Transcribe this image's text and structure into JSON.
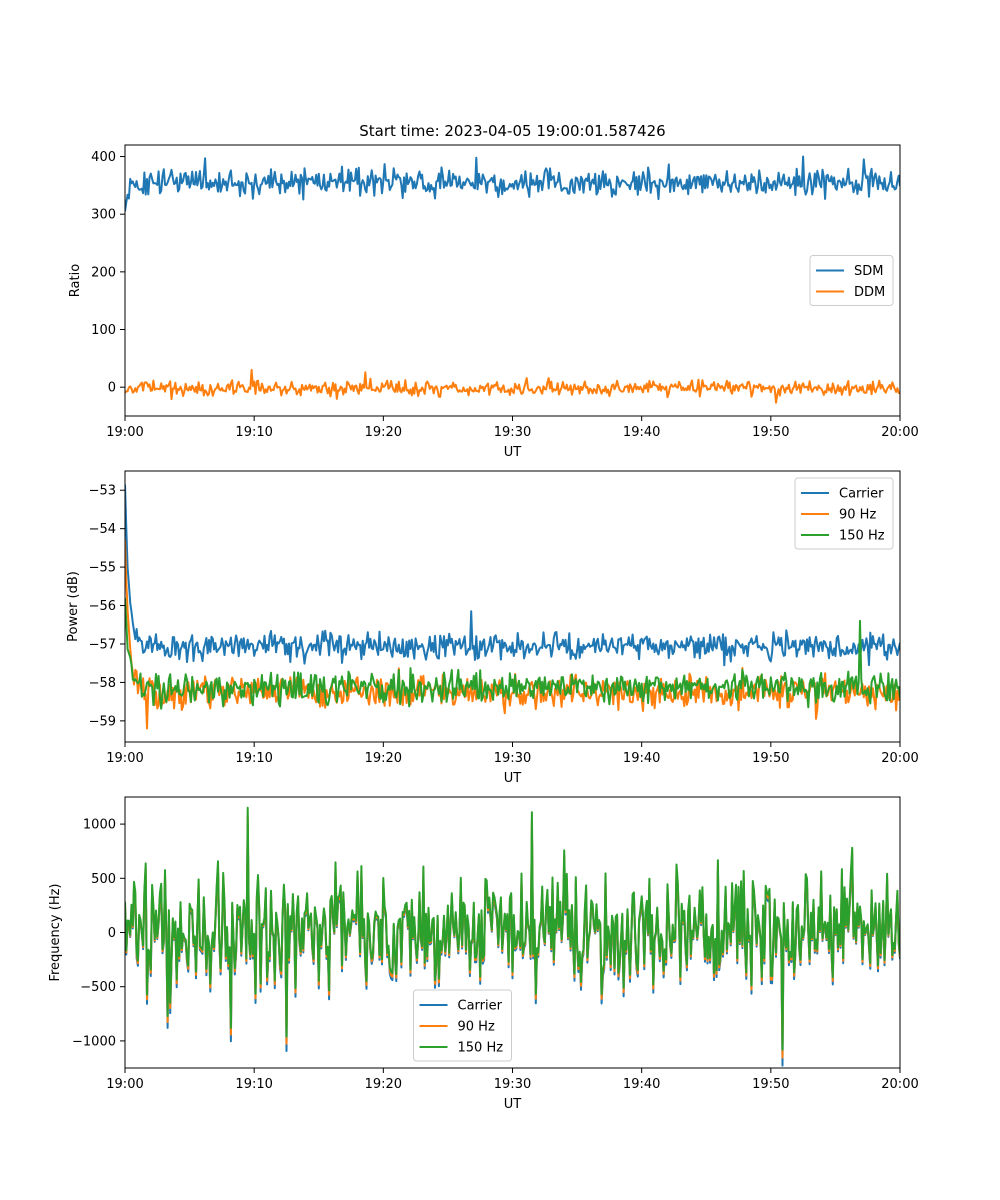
{
  "figure": {
    "title": "Start time: 2023-04-05 19:00:01.587426"
  },
  "chart_data": [
    {
      "type": "line",
      "xlabel": "UT",
      "ylabel": "Ratio",
      "x_ticks": [
        "19:00",
        "19:10",
        "19:20",
        "19:30",
        "19:40",
        "19:50",
        "20:00"
      ],
      "xlim_minutes": [
        0,
        60
      ],
      "y_ticks": [
        0,
        100,
        200,
        300,
        400
      ],
      "ylim": [
        -50,
        420
      ],
      "legend_position": "center-right",
      "series": [
        {
          "name": "SDM",
          "color": "#1f77b4",
          "base": 355,
          "noise": 16,
          "start": 305,
          "spikes": [
            [
              6.2,
              397
            ],
            [
              27.2,
              398
            ],
            [
              52.5,
              400
            ],
            [
              57.2,
              395
            ]
          ]
        },
        {
          "name": "DDM",
          "color": "#ff7f0e",
          "base": -2,
          "noise": 9,
          "start": -10,
          "spikes": [
            [
              9.8,
              30
            ],
            [
              18.6,
              26
            ],
            [
              50.4,
              -27
            ]
          ]
        }
      ]
    },
    {
      "type": "line",
      "xlabel": "UT",
      "ylabel": "Power (dB)",
      "x_ticks": [
        "19:00",
        "19:10",
        "19:20",
        "19:30",
        "19:40",
        "19:50",
        "20:00"
      ],
      "xlim_minutes": [
        0,
        60
      ],
      "y_ticks": [
        -53,
        -54,
        -55,
        -56,
        -57,
        -58,
        -59
      ],
      "ylim": [
        -59.55,
        -52.5
      ],
      "legend_position": "upper-right",
      "series": [
        {
          "name": "Carrier",
          "color": "#1f77b4",
          "base": -57.05,
          "noise": 0.25,
          "start": -52.85,
          "spikes": [
            [
              26.8,
              -56.15
            ]
          ]
        },
        {
          "name": "90 Hz",
          "color": "#ff7f0e",
          "base": -58.25,
          "noise": 0.3,
          "start": -54.3,
          "spikes": [
            [
              1.7,
              -59.2
            ],
            [
              53.5,
              -58.95
            ]
          ]
        },
        {
          "name": "150 Hz",
          "color": "#2ca02c",
          "base": -58.15,
          "noise": 0.3,
          "start": -55.8,
          "spikes": [
            [
              56.9,
              -56.4
            ]
          ]
        }
      ]
    },
    {
      "type": "line",
      "xlabel": "UT",
      "ylabel": "Frequency (Hz)",
      "x_ticks": [
        "19:00",
        "19:10",
        "19:20",
        "19:30",
        "19:40",
        "19:50",
        "20:00"
      ],
      "xlim_minutes": [
        0,
        60
      ],
      "y_ticks": [
        1000,
        500,
        0,
        -500,
        -1000
      ],
      "ylim": [
        -1250,
        1250
      ],
      "legend_position": "lower-center",
      "series": [
        {
          "name": "Carrier",
          "color": "#1f77b4",
          "offset": -60
        },
        {
          "name": "90 Hz",
          "color": "#ff7f0e",
          "offset": -30
        },
        {
          "name": "150 Hz",
          "color": "#2ca02c",
          "offset": 0
        }
      ],
      "freq_base": {
        "base": 30,
        "noise": 380,
        "spikes": [
          [
            9.5,
            1150
          ],
          [
            31.5,
            1110
          ],
          [
            12.5,
            -960
          ],
          [
            50.9,
            -1080
          ],
          [
            3.3,
            -770
          ],
          [
            8.2,
            -880
          ]
        ]
      }
    }
  ]
}
